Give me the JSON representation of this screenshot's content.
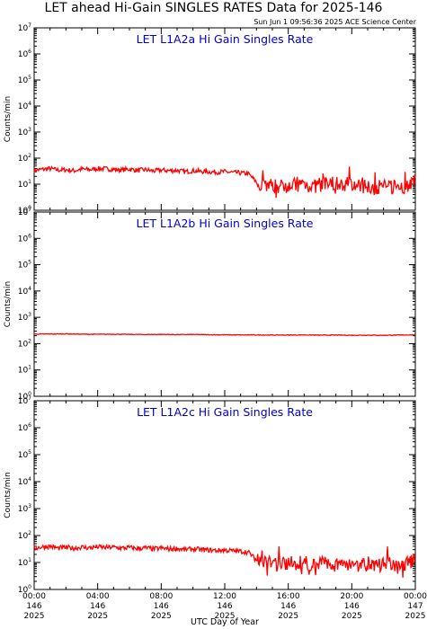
{
  "title": "LET ahead Hi-Gain SINGLES RATES Data for 2025-146",
  "timestamp": "Sun Jun  1 09:56:36 2025 ACE Science Center",
  "colors": {
    "series": "#ff0000",
    "panel_title": "#0000cc",
    "axes": "#000000"
  },
  "chart_data": [
    {
      "type": "line",
      "title": "LET L1A2a Hi Gain Singles Rate",
      "ylabel": "Counts/min",
      "xlabel": "",
      "yscale": "log",
      "ylim": [
        1,
        10000000
      ],
      "xlim": [
        0,
        24
      ],
      "x_unit": "hours UTC",
      "grid": false,
      "series": [
        {
          "values": [
            [
              0,
              34
            ],
            [
              0.5,
              37
            ],
            [
              1,
              40
            ],
            [
              1.5,
              35
            ],
            [
              2,
              36
            ],
            [
              2.5,
              33
            ],
            [
              3,
              38
            ],
            [
              3.5,
              36
            ],
            [
              4,
              40
            ],
            [
              4.5,
              39
            ],
            [
              5,
              37
            ],
            [
              5.5,
              35
            ],
            [
              6,
              38
            ],
            [
              6.5,
              34
            ],
            [
              7,
              36
            ],
            [
              7.5,
              32
            ],
            [
              8,
              35
            ],
            [
              8.5,
              33
            ],
            [
              9,
              34
            ],
            [
              9.5,
              30
            ],
            [
              10,
              33
            ],
            [
              10.5,
              31
            ],
            [
              11,
              30
            ],
            [
              11.5,
              29
            ],
            [
              12,
              30
            ],
            [
              12.5,
              28
            ],
            [
              13,
              27
            ],
            [
              13.5,
              25
            ],
            [
              14,
              12
            ],
            [
              14.5,
              10
            ],
            [
              15,
              9
            ],
            [
              15.5,
              8
            ],
            [
              16,
              10
            ],
            [
              16.5,
              9
            ],
            [
              17,
              11
            ],
            [
              17.5,
              8
            ],
            [
              18,
              9
            ],
            [
              18.5,
              10
            ],
            [
              19,
              8
            ],
            [
              19.5,
              9
            ],
            [
              20,
              10
            ],
            [
              20.5,
              8
            ],
            [
              21,
              9
            ],
            [
              21.5,
              7
            ],
            [
              22,
              9
            ],
            [
              22.5,
              8
            ],
            [
              23,
              7
            ],
            [
              23.5,
              9
            ],
            [
              24,
              11
            ]
          ]
        }
      ]
    },
    {
      "type": "line",
      "title": "LET L1A2b Hi Gain Singles Rate",
      "ylabel": "Counts/min",
      "xlabel": "",
      "yscale": "log",
      "ylim": [
        1,
        10000000
      ],
      "xlim": [
        0,
        24
      ],
      "x_unit": "hours UTC",
      "grid": false,
      "series": [
        {
          "values": [
            [
              0,
              230
            ],
            [
              1,
              232
            ],
            [
              2,
              235
            ],
            [
              3,
              228
            ],
            [
              4,
              226
            ],
            [
              5,
              228
            ],
            [
              6,
              224
            ],
            [
              7,
              222
            ],
            [
              8,
              224
            ],
            [
              9,
              220
            ],
            [
              10,
              222
            ],
            [
              11,
              218
            ],
            [
              12,
              216
            ],
            [
              13,
              214
            ],
            [
              14,
              214
            ],
            [
              15,
              212
            ],
            [
              16,
              212
            ],
            [
              17,
              214
            ],
            [
              18,
              210
            ],
            [
              19,
              212
            ],
            [
              20,
              208
            ],
            [
              21,
              210
            ],
            [
              22,
              208
            ],
            [
              23,
              212
            ],
            [
              24,
              216
            ]
          ]
        }
      ]
    },
    {
      "type": "line",
      "title": "LET L1A2c Hi Gain Singles Rate",
      "ylabel": "Counts/min",
      "xlabel": "UTC Day of Year",
      "yscale": "log",
      "ylim": [
        1,
        10000000
      ],
      "xlim": [
        0,
        24
      ],
      "x_unit": "hours UTC",
      "grid": false,
      "xticks": [
        {
          "x": 0,
          "time": "00:00",
          "doy": "146",
          "year": "2025"
        },
        {
          "x": 4,
          "time": "04:00",
          "doy": "146",
          "year": "2025"
        },
        {
          "x": 8,
          "time": "08:00",
          "doy": "146",
          "year": "2025"
        },
        {
          "x": 12,
          "time": "12:00",
          "doy": "146",
          "year": "2025"
        },
        {
          "x": 16,
          "time": "16:00",
          "doy": "146",
          "year": "2025"
        },
        {
          "x": 20,
          "time": "20:00",
          "doy": "146",
          "year": "2025"
        },
        {
          "x": 24,
          "time": "00:00",
          "doy": "147",
          "year": "2025"
        }
      ],
      "series": [
        {
          "values": [
            [
              0,
              34
            ],
            [
              0.5,
              38
            ],
            [
              1,
              40
            ],
            [
              1.5,
              34
            ],
            [
              2,
              36
            ],
            [
              2.5,
              34
            ],
            [
              3,
              37
            ],
            [
              3.5,
              35
            ],
            [
              4,
              38
            ],
            [
              4.5,
              36
            ],
            [
              5,
              37
            ],
            [
              5.5,
              34
            ],
            [
              6,
              36
            ],
            [
              6.5,
              33
            ],
            [
              7,
              35
            ],
            [
              7.5,
              32
            ],
            [
              8,
              34
            ],
            [
              8.5,
              32
            ],
            [
              9,
              33
            ],
            [
              9.5,
              30
            ],
            [
              10,
              32
            ],
            [
              10.5,
              30
            ],
            [
              11,
              29
            ],
            [
              11.5,
              28
            ],
            [
              12,
              29
            ],
            [
              12.5,
              27
            ],
            [
              13,
              26
            ],
            [
              13.5,
              24
            ],
            [
              14,
              12
            ],
            [
              14.5,
              10
            ],
            [
              15,
              9
            ],
            [
              15.5,
              8
            ],
            [
              16,
              10
            ],
            [
              16.5,
              9
            ],
            [
              17,
              10
            ],
            [
              17.5,
              8
            ],
            [
              18,
              9
            ],
            [
              18.5,
              10
            ],
            [
              19,
              8
            ],
            [
              19.5,
              9
            ],
            [
              20,
              10
            ],
            [
              20.5,
              8
            ],
            [
              21,
              9
            ],
            [
              21.5,
              7
            ],
            [
              22,
              9
            ],
            [
              22.5,
              8
            ],
            [
              23,
              7
            ],
            [
              23.5,
              9
            ],
            [
              24,
              11
            ]
          ]
        }
      ]
    }
  ]
}
